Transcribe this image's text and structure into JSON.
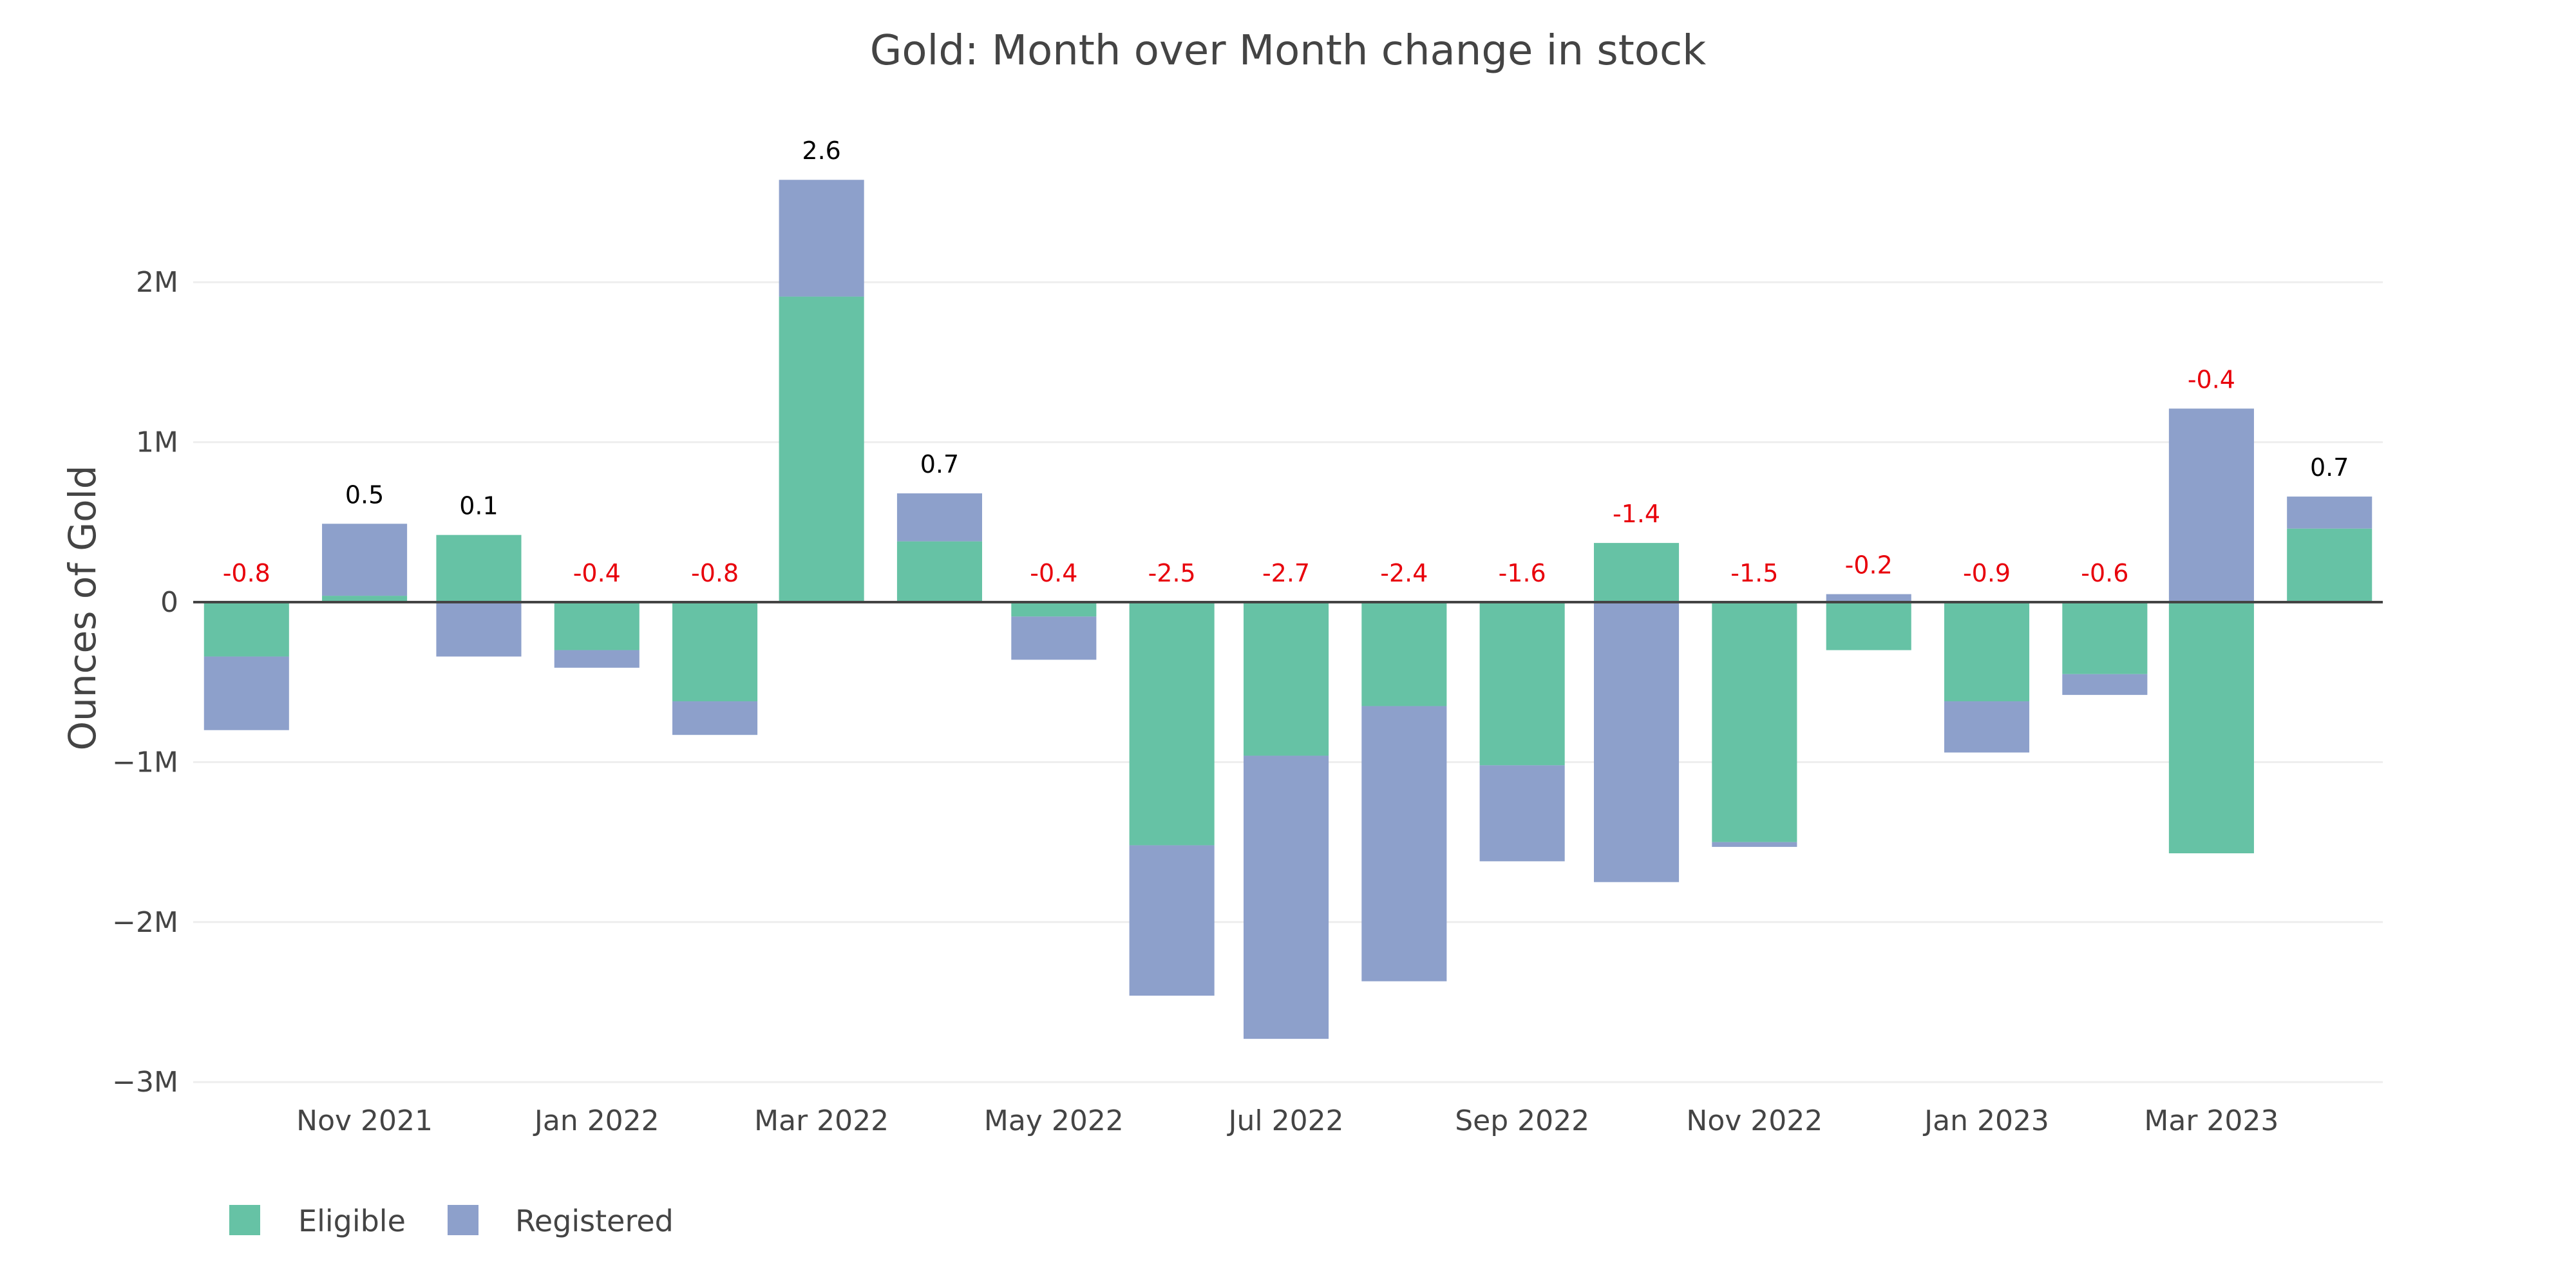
{
  "chart_data": {
    "type": "bar",
    "barmode": "relative",
    "title": "Gold: Month over Month change in stock",
    "xlabel": "",
    "ylabel": "Ounces of Gold",
    "ylim": [
      -3128000,
      3120000
    ],
    "grid": true,
    "legend_position": "bottom-left",
    "x": [
      "2021-10-01",
      "2021-11-01",
      "2021-12-01",
      "2022-01-01",
      "2022-02-01",
      "2022-03-01",
      "2022-04-01",
      "2022-05-01",
      "2022-06-01",
      "2022-07-01",
      "2022-08-01",
      "2022-09-01",
      "2022-10-01",
      "2022-11-01",
      "2022-12-01",
      "2023-01-01",
      "2023-02-01",
      "2023-03-01",
      "2023-04-01"
    ],
    "xlim": [
      "2021-09-17",
      "2023-04-15"
    ],
    "x_ticks": [
      {
        "date": "2021-11-01",
        "label": "Nov 2021"
      },
      {
        "date": "2022-01-01",
        "label": "Jan 2022"
      },
      {
        "date": "2022-03-01",
        "label": "Mar 2022"
      },
      {
        "date": "2022-05-01",
        "label": "May 2022"
      },
      {
        "date": "2022-07-01",
        "label": "Jul 2022"
      },
      {
        "date": "2022-09-01",
        "label": "Sep 2022"
      },
      {
        "date": "2022-11-01",
        "label": "Nov 2022"
      },
      {
        "date": "2023-01-01",
        "label": "Jan 2023"
      },
      {
        "date": "2023-03-01",
        "label": "Mar 2023"
      }
    ],
    "y_ticks": [
      {
        "value": 2000000,
        "label": "2M"
      },
      {
        "value": 1000000,
        "label": "1M"
      },
      {
        "value": 0,
        "label": "0"
      },
      {
        "value": -1000000,
        "label": "−1M"
      },
      {
        "value": -2000000,
        "label": "−2M"
      },
      {
        "value": -3000000,
        "label": "−3M"
      }
    ],
    "series": [
      {
        "name": "Eligible",
        "color": "#66c2a5",
        "values": [
          -340000,
          40000,
          420000,
          -300000,
          -620000,
          1910000,
          380000,
          -90000,
          -1520000,
          -960000,
          -650000,
          -1020000,
          370000,
          -1500000,
          -300000,
          -620000,
          -450000,
          -1570000,
          460000
        ]
      },
      {
        "name": "Registered",
        "color": "#8da0cb",
        "values": [
          -460000,
          450000,
          -340000,
          -110000,
          -210000,
          730000,
          300000,
          -270000,
          -940000,
          -1770000,
          -1720000,
          -600000,
          -1750000,
          -30000,
          50000,
          -320000,
          -130000,
          1210000,
          200000
        ]
      }
    ],
    "annotations": {
      "labels": [
        "-0.8",
        "0.5",
        "0.1",
        "-0.4",
        "-0.8",
        "2.6",
        "0.7",
        "-0.4",
        "-2.5",
        "-2.7",
        "-2.4",
        "-1.6",
        "-1.4",
        "-1.5",
        "-0.2",
        "-0.9",
        "-0.6",
        "-0.4",
        "0.7"
      ],
      "positive_color": "#000000",
      "negative_color": "#e8000b"
    }
  },
  "colors": {
    "text": "#444444",
    "grid": "#eeeeee",
    "zero_line": "#444444"
  }
}
